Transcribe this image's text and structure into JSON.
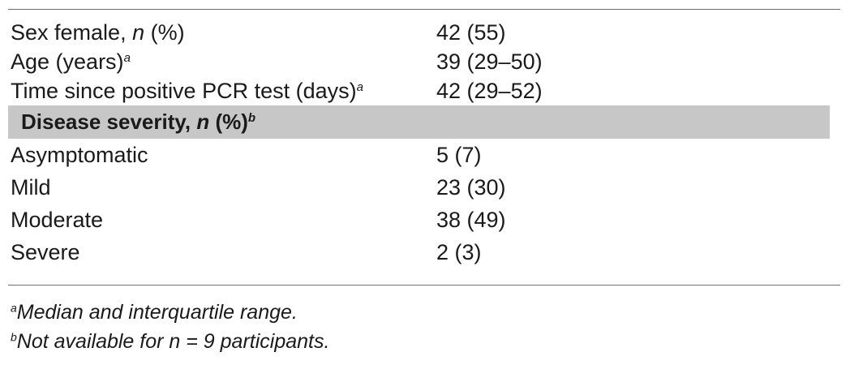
{
  "table": {
    "top_rows": [
      {
        "label": "Sex female, ",
        "label_italic": "n",
        "label_rest": " (%)",
        "sup": "",
        "value": "42 (55)"
      },
      {
        "label": "Age (years)",
        "label_italic": "",
        "label_rest": "",
        "sup": "a",
        "value": "39 (29–50)"
      },
      {
        "label": "Time since positive PCR test (days)",
        "label_italic": "",
        "label_rest": "",
        "sup": "a",
        "value": "42 (29–52)"
      }
    ],
    "section": {
      "label": "Disease severity, ",
      "label_italic": "n",
      "label_rest": " (%)",
      "sup": "b"
    },
    "severity_rows": [
      {
        "label": "Asymptomatic",
        "value": "5 (7)"
      },
      {
        "label": "Mild",
        "value": "23 (30)"
      },
      {
        "label": "Moderate",
        "value": "38 (49)"
      },
      {
        "label": "Severe",
        "value": "2 (3)"
      }
    ]
  },
  "footnotes": [
    {
      "marker": "a",
      "text": "Median and interquartile range."
    },
    {
      "marker": "b",
      "text": "Not available for n = 9 participants."
    }
  ]
}
